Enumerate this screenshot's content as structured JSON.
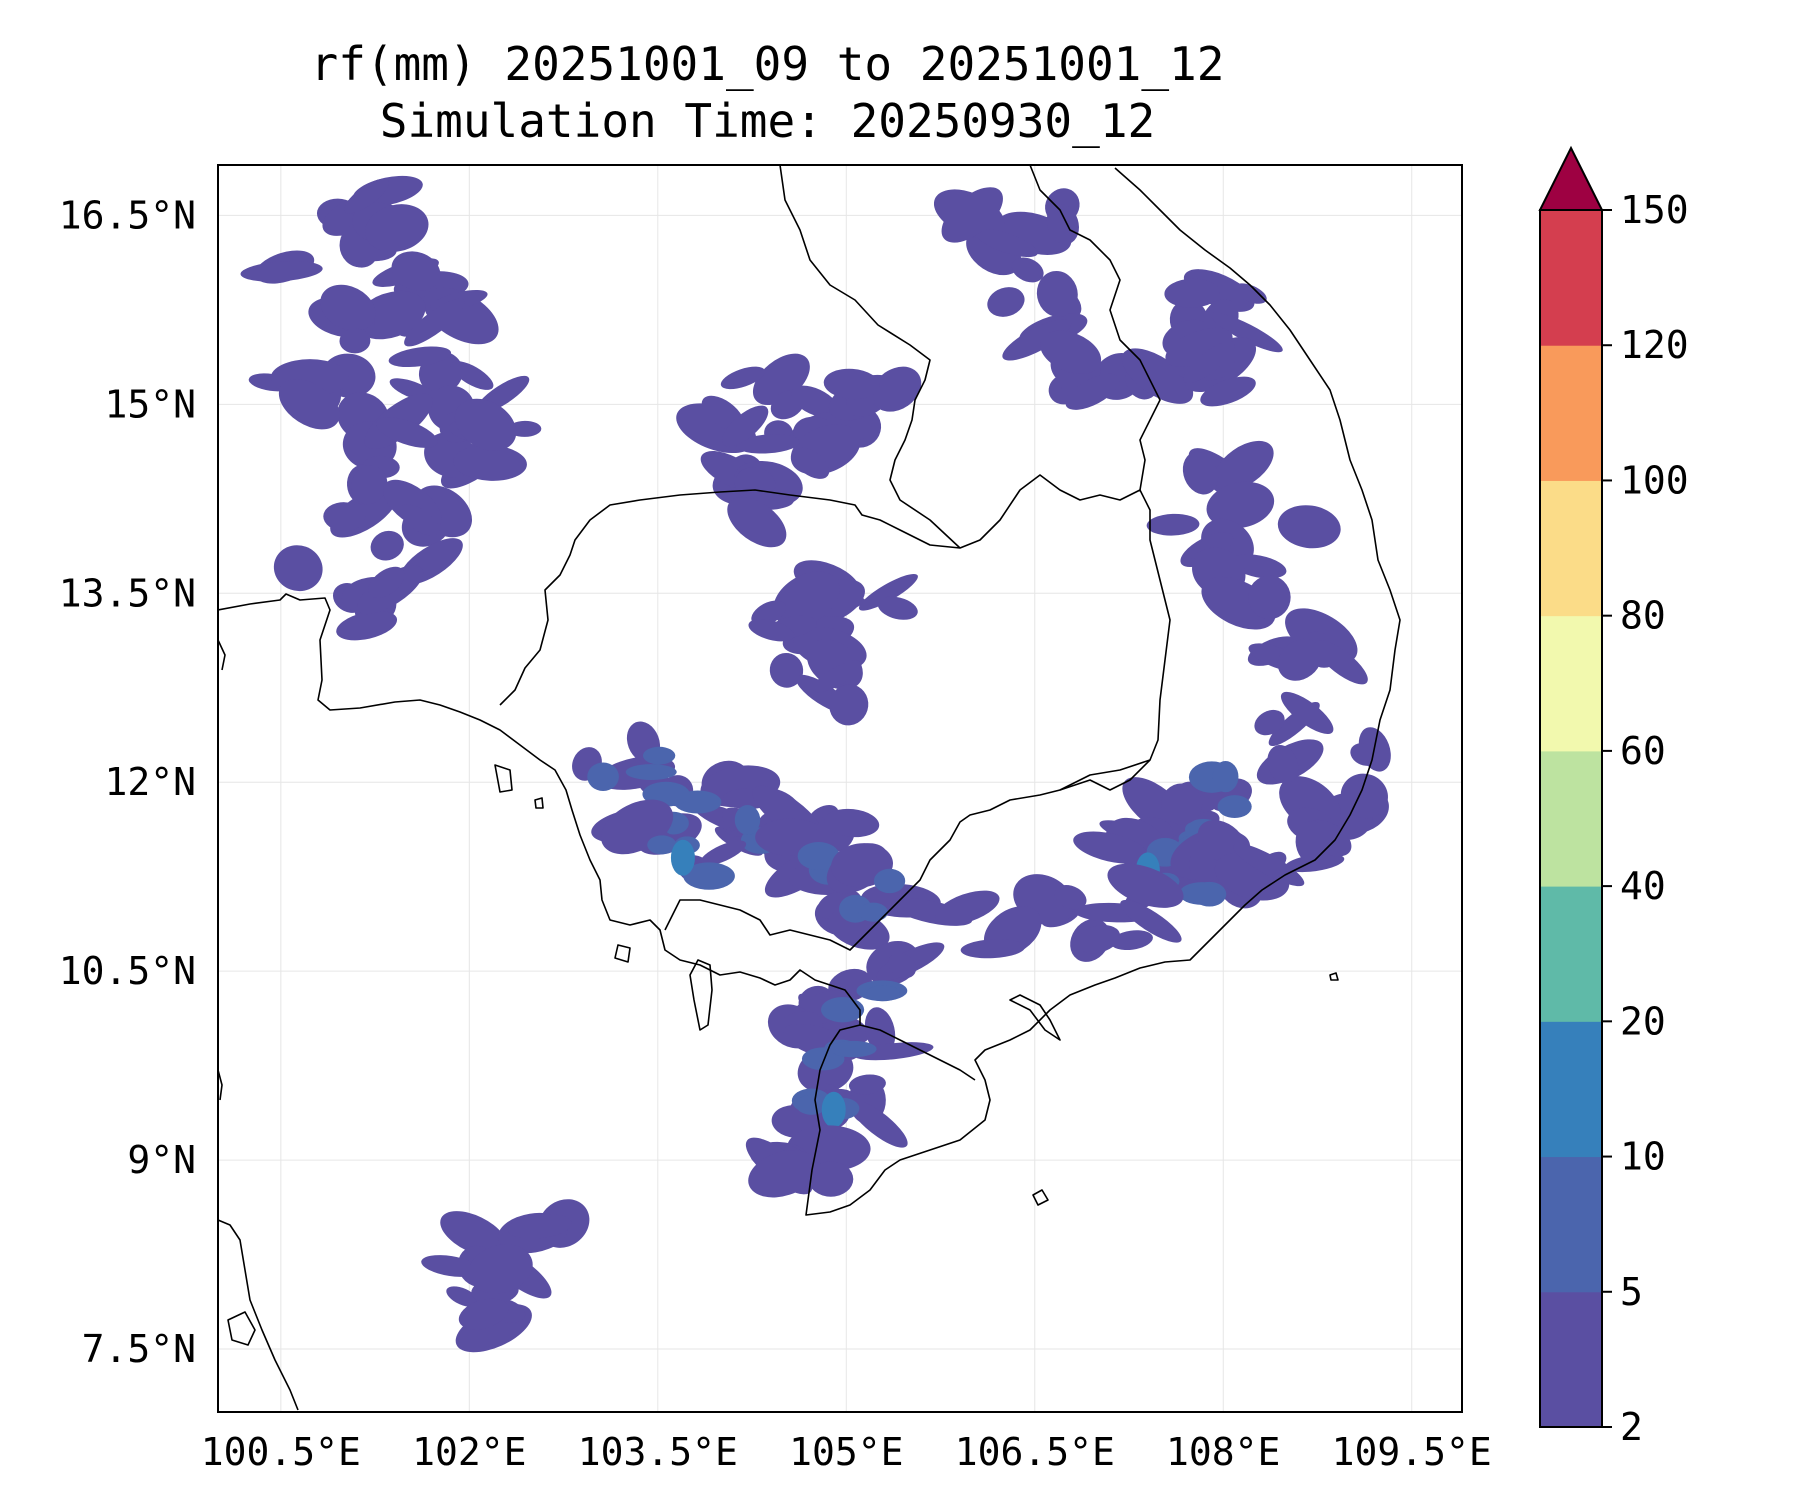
{
  "title": {
    "line1": "rf(mm) 20251001_09 to 20251001_12",
    "line2": "Simulation Time: 20250930_12"
  },
  "map": {
    "lon_range": [
      100.0,
      109.9
    ],
    "lat_range": [
      7.0,
      16.9
    ],
    "lat_ticks": [
      {
        "value": 16.5,
        "label": "16.5°N"
      },
      {
        "value": 15.0,
        "label": "15°N"
      },
      {
        "value": 13.5,
        "label": "13.5°N"
      },
      {
        "value": 12.0,
        "label": "12°N"
      },
      {
        "value": 10.5,
        "label": "10.5°N"
      },
      {
        "value": 9.0,
        "label": "9°N"
      },
      {
        "value": 7.5,
        "label": "7.5°N"
      }
    ],
    "lon_ticks": [
      {
        "value": 100.5,
        "label": "100.5°E"
      },
      {
        "value": 102.0,
        "label": "102°E"
      },
      {
        "value": 103.5,
        "label": "103.5°E"
      },
      {
        "value": 105.0,
        "label": "105°E"
      },
      {
        "value": 106.5,
        "label": "106.5°E"
      },
      {
        "value": 108.0,
        "label": "108°E"
      },
      {
        "value": 109.5,
        "label": "109.5°E"
      }
    ],
    "land_outline_color": "#000000",
    "gridline_color": "#e6e6e6",
    "rain_cells": [
      {
        "lon": 100.9,
        "lat": 16.3,
        "level": 0
      },
      {
        "lon": 101.5,
        "lat": 16.5,
        "level": 0
      },
      {
        "lon": 101.7,
        "lat": 15.9,
        "level": 0
      },
      {
        "lon": 101.4,
        "lat": 15.5,
        "level": 0
      },
      {
        "lon": 101.9,
        "lat": 15.1,
        "level": 0
      },
      {
        "lon": 100.8,
        "lat": 15.0,
        "level": 0
      },
      {
        "lon": 101.6,
        "lat": 14.6,
        "level": 0
      },
      {
        "lon": 101.3,
        "lat": 14.1,
        "level": 0
      },
      {
        "lon": 101.8,
        "lat": 14.0,
        "level": 0
      },
      {
        "lon": 101.0,
        "lat": 13.5,
        "level": 0
      },
      {
        "lon": 102.3,
        "lat": 14.8,
        "level": 0
      },
      {
        "lon": 104.4,
        "lat": 15.0,
        "level": 0
      },
      {
        "lon": 104.9,
        "lat": 14.8,
        "level": 0
      },
      {
        "lon": 105.2,
        "lat": 14.9,
        "level": 0
      },
      {
        "lon": 104.3,
        "lat": 14.6,
        "level": 0
      },
      {
        "lon": 104.7,
        "lat": 14.1,
        "level": 0
      },
      {
        "lon": 105.0,
        "lat": 13.6,
        "level": 0
      },
      {
        "lon": 104.6,
        "lat": 13.2,
        "level": 0
      },
      {
        "lon": 104.9,
        "lat": 12.7,
        "level": 0
      },
      {
        "lon": 106.3,
        "lat": 16.3,
        "level": 0
      },
      {
        "lon": 106.6,
        "lat": 15.6,
        "level": 0
      },
      {
        "lon": 107.1,
        "lat": 15.3,
        "level": 0
      },
      {
        "lon": 107.8,
        "lat": 15.7,
        "level": 0
      },
      {
        "lon": 108.0,
        "lat": 15.2,
        "level": 0
      },
      {
        "lon": 107.8,
        "lat": 14.3,
        "level": 0
      },
      {
        "lon": 108.3,
        "lat": 13.8,
        "level": 0
      },
      {
        "lon": 108.5,
        "lat": 13.2,
        "level": 0
      },
      {
        "lon": 108.6,
        "lat": 12.7,
        "level": 0
      },
      {
        "lon": 108.9,
        "lat": 12.0,
        "level": 0
      },
      {
        "lon": 103.3,
        "lat": 12.1,
        "level": 1
      },
      {
        "lon": 103.8,
        "lat": 11.8,
        "level": 1
      },
      {
        "lon": 104.4,
        "lat": 11.6,
        "level": 1
      },
      {
        "lon": 104.9,
        "lat": 11.4,
        "level": 1
      },
      {
        "lon": 105.3,
        "lat": 11.1,
        "level": 1
      },
      {
        "lon": 103.7,
        "lat": 11.4,
        "level": 2
      },
      {
        "lon": 105.2,
        "lat": 10.3,
        "level": 1
      },
      {
        "lon": 105.0,
        "lat": 9.8,
        "level": 1
      },
      {
        "lon": 104.9,
        "lat": 9.4,
        "level": 2
      },
      {
        "lon": 104.8,
        "lat": 9.0,
        "level": 0
      },
      {
        "lon": 107.7,
        "lat": 11.6,
        "level": 1
      },
      {
        "lon": 108.1,
        "lat": 11.9,
        "level": 1
      },
      {
        "lon": 107.4,
        "lat": 11.3,
        "level": 2
      },
      {
        "lon": 107.9,
        "lat": 11.2,
        "level": 1
      },
      {
        "lon": 108.4,
        "lat": 11.4,
        "level": 0
      },
      {
        "lon": 107.0,
        "lat": 10.9,
        "level": 0
      },
      {
        "lon": 106.4,
        "lat": 10.9,
        "level": 0
      },
      {
        "lon": 102.4,
        "lat": 8.3,
        "level": 0
      },
      {
        "lon": 102.1,
        "lat": 7.9,
        "level": 0
      }
    ]
  },
  "colorbar": {
    "colors": [
      "#5a4fa2",
      "#4b65ad",
      "#3680bb",
      "#5fbaa8",
      "#bde3a0",
      "#f2f9ae",
      "#fbdc88",
      "#f99a5b",
      "#d43e4f"
    ],
    "extend_color": "#9e0142",
    "ticks": [
      "2",
      "5",
      "10",
      "20",
      "40",
      "60",
      "80",
      "100",
      "120",
      "150"
    ]
  }
}
